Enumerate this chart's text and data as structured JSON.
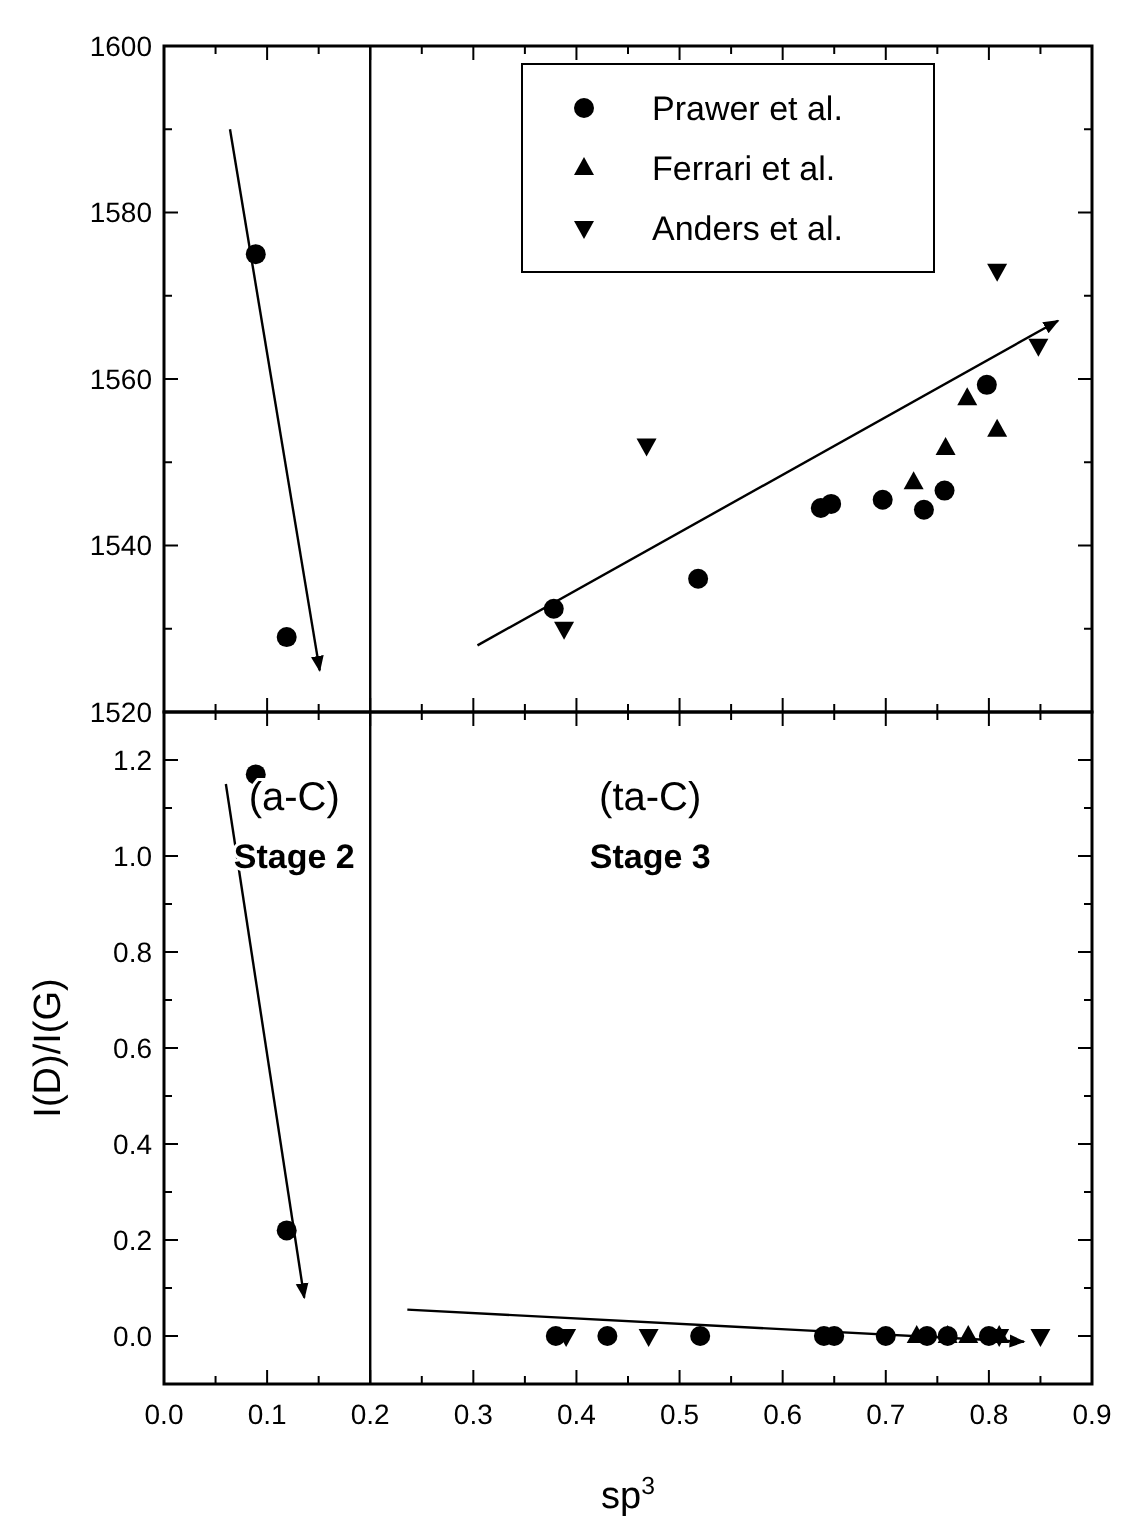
{
  "chart_data": [
    {
      "type": "scatter",
      "xlim": [
        0,
        0.9
      ],
      "xticks": [
        0,
        0.1,
        0.2,
        0.3,
        0.4,
        0.5,
        0.6,
        0.7,
        0.8,
        0.9
      ],
      "ylim": [
        1520,
        1600
      ],
      "yticks": [
        1520,
        1540,
        1560,
        1580,
        1600
      ],
      "tick_labels": "y",
      "legend": "top right",
      "series": [
        {
          "name": "Prawer et al.",
          "color": "#000000",
          "marker": "circle",
          "x": [
            0.089,
            0.119,
            0.378,
            0.518,
            0.637,
            0.647,
            0.697,
            0.737,
            0.757,
            0.798
          ],
          "values": [
            1575,
            1529,
            1532.4,
            1536,
            1544.5,
            1545,
            1545.5,
            1544.3,
            1546.6,
            1559.3
          ]
        },
        {
          "name": "Ferrari et al.",
          "color": "#000000",
          "marker": "triangle",
          "x": [
            0.727,
            0.758,
            0.779,
            0.808
          ],
          "values": [
            1547.6,
            1551.7,
            1557.7,
            1553.9
          ]
        },
        {
          "name": "Anders et al.",
          "color": "#000000",
          "marker": "triangle-down",
          "x": [
            0.388,
            0.468,
            0.808,
            0.848
          ],
          "values": [
            1530,
            1552,
            1573,
            1564
          ]
        },
        {
          "type": "line",
          "color": "#000000",
          "marker": "none",
          "x": [
            0.064,
            0.151
          ],
          "values": [
            1590,
            1525
          ]
        },
        {
          "type": "line",
          "color": "#000000",
          "marker": "none",
          "x": [
            0.304,
            0.867
          ],
          "values": [
            1528,
            1567
          ]
        }
      ],
      "ref_lines": [
        {
          "axis": "x",
          "value": 0.2,
          "color": "#000000"
        }
      ]
    },
    {
      "type": "scatter",
      "xlabel": "sp$^{3}$",
      "ylabel": "I(D)/I(G)",
      "xlim": [
        0,
        0.9
      ],
      "xticks": [
        {
          "value": 0,
          "label": "0.0"
        },
        0.1,
        0.2,
        0.3,
        0.4,
        0.5,
        0.6,
        0.7,
        0.8,
        0.9
      ],
      "ylim": [
        -0.1,
        1.3
      ],
      "yticks": [
        {
          "value": 0,
          "label": "0.0"
        },
        0.2,
        0.4,
        0.6,
        0.8,
        {
          "value": 1,
          "label": "1.0"
        },
        1.2
      ],
      "series": [
        {
          "color": "#000000",
          "marker": "circle",
          "x": [
            0.089,
            0.119,
            0.38,
            0.43,
            0.52,
            0.64,
            0.65,
            0.7,
            0.74,
            0.76,
            0.8
          ],
          "values": [
            1.17,
            0.22,
            0,
            0,
            0,
            0,
            0,
            0,
            0,
            0,
            0
          ]
        },
        {
          "color": "#000000",
          "marker": "triangle",
          "x": [
            0.73,
            0.76,
            0.78,
            0.81
          ],
          "values": [
            0,
            0,
            0,
            0
          ]
        },
        {
          "color": "#000000",
          "marker": "triangle-down",
          "x": [
            0.39,
            0.47,
            0.81,
            0.85
          ],
          "values": [
            0,
            0,
            0,
            0
          ]
        },
        {
          "type": "line",
          "color": "#000000",
          "marker": "none",
          "x": [
            0.06,
            0.136
          ],
          "values": [
            1.15,
            0.08
          ]
        },
        {
          "type": "line",
          "color": "#000000",
          "marker": "none",
          "x": [
            0.236,
            0.834
          ],
          "values": [
            0.055,
            -0.012
          ]
        }
      ],
      "ref_lines": [
        {
          "axis": "x",
          "value": 0.2,
          "color": "#000000"
        }
      ],
      "annotations": [
        "(a-C)",
        "Stage 2",
        "(ta-C)",
        "Stage 3"
      ]
    }
  ]
}
